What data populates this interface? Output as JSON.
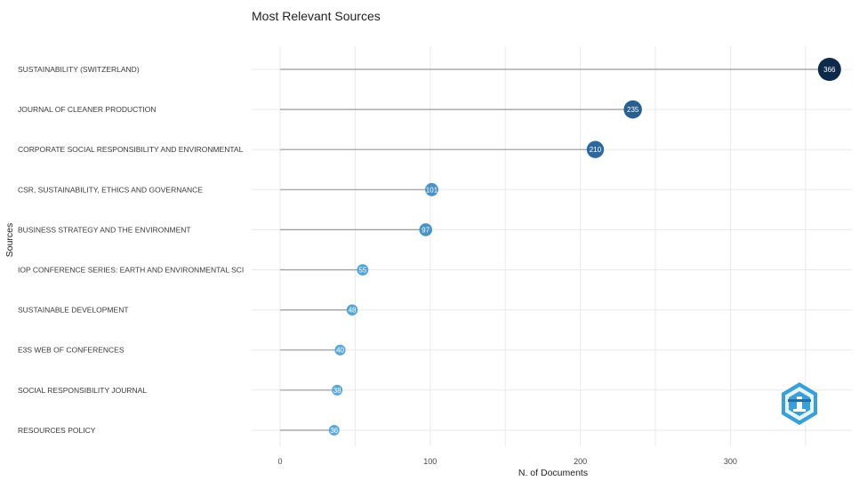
{
  "chart_data": {
    "type": "lollipop",
    "title": "Most Relevant Sources",
    "xlabel": "N. of Documents",
    "ylabel": "Sources",
    "xlim": [
      0,
      366
    ],
    "xticks": [
      "0",
      "100",
      "200",
      "300"
    ],
    "grid": true,
    "categories": [
      "SUSTAINABILITY (SWITZERLAND)",
      "JOURNAL OF CLEANER PRODUCTION",
      "CORPORATE SOCIAL RESPONSIBILITY AND ENVIRONMENTAL",
      "CSR, SUSTAINABILITY, ETHICS AND GOVERNANCE",
      "BUSINESS STRATEGY AND THE ENVIRONMENT",
      "IOP CONFERENCE SERIES: EARTH AND ENVIRONMENTAL SCI",
      "SUSTAINABLE DEVELOPMENT",
      "E3S WEB OF CONFERENCES",
      "SOCIAL RESPONSIBILITY JOURNAL",
      "RESOURCES POLICY"
    ],
    "values": [
      366,
      235,
      210,
      101,
      97,
      55,
      48,
      40,
      38,
      36
    ],
    "value_labels": [
      "366",
      "235",
      "210",
      "101",
      "97",
      "55",
      "48",
      "40",
      "38",
      "36"
    ],
    "colors": {
      "high": "#0d2a4a",
      "mid": "#2f6da3",
      "low": "#5aa9dc",
      "stem": "#9a9a9a",
      "grid": "#e9e9e9"
    },
    "logo": {
      "name": "bibliometrix-logo-icon",
      "color": "#3a9fd8"
    }
  }
}
